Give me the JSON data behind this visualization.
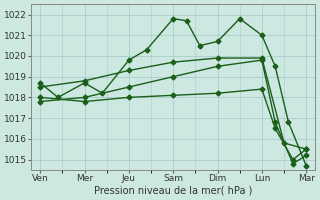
{
  "xlabel": "Pression niveau de la mer( hPa )",
  "background_color": "#cce8e0",
  "grid_color": "#aacccc",
  "line_color": "#1a5e1a",
  "xtick_labels": [
    "Ven",
    "Mer",
    "Jeu",
    "Sam",
    "Dim",
    "Lun",
    "Mar"
  ],
  "xtick_positions": [
    0,
    1,
    2,
    3,
    4,
    5,
    6
  ],
  "ylim": [
    1014.5,
    1022.5
  ],
  "yticks": [
    1015,
    1016,
    1017,
    1018,
    1019,
    1020,
    1021,
    1022
  ],
  "series": [
    {
      "x": [
        0,
        0.4,
        1.0,
        1.4,
        2.0,
        2.4,
        3.0,
        3.3,
        3.6,
        4.0,
        4.5,
        5.0,
        5.3,
        5.6,
        6.0
      ],
      "y": [
        1018.7,
        1018.0,
        1018.7,
        1018.2,
        1019.8,
        1020.3,
        1021.8,
        1021.7,
        1020.5,
        1020.7,
        1021.8,
        1021.0,
        1019.5,
        1016.8,
        1014.7
      ]
    },
    {
      "x": [
        0,
        1.0,
        2.0,
        3.0,
        4.0,
        5.0,
        5.5,
        6.0
      ],
      "y": [
        1018.5,
        1018.8,
        1019.3,
        1019.7,
        1019.9,
        1019.9,
        1015.8,
        1015.5
      ]
    },
    {
      "x": [
        0,
        1.0,
        2.0,
        3.0,
        4.0,
        5.0,
        5.3,
        5.7,
        6.0
      ],
      "y": [
        1018.0,
        1017.8,
        1018.0,
        1018.1,
        1018.2,
        1018.4,
        1016.5,
        1015.0,
        1015.5
      ]
    },
    {
      "x": [
        0,
        1.0,
        2.0,
        3.0,
        4.0,
        5.0,
        5.3,
        5.7,
        6.0
      ],
      "y": [
        1017.8,
        1018.0,
        1018.5,
        1019.0,
        1019.5,
        1019.8,
        1016.8,
        1014.8,
        1015.2
      ]
    }
  ]
}
